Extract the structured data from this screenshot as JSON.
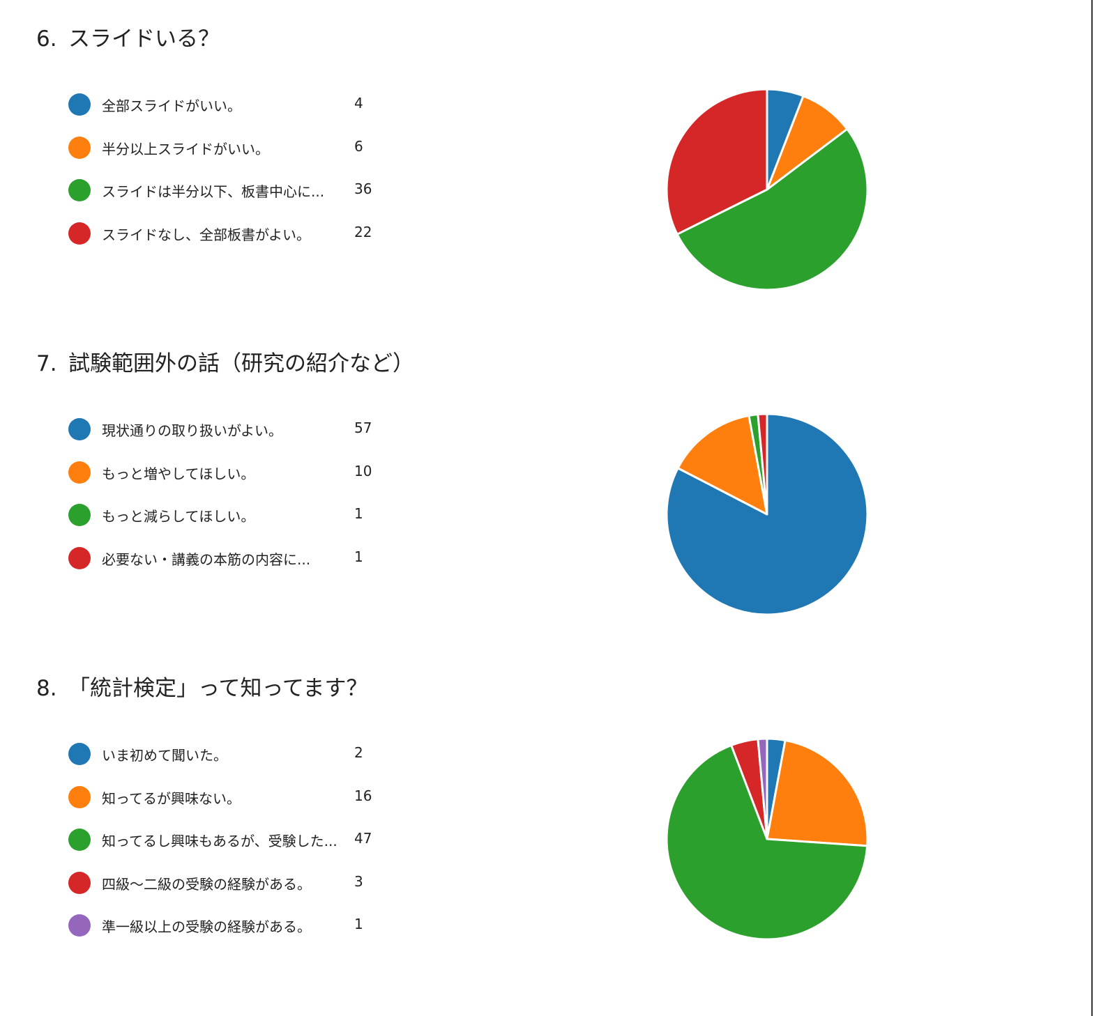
{
  "colors": [
    "#1f77b4",
    "#ff7f0e",
    "#2ca02c",
    "#d62728",
    "#9467bd"
  ],
  "chart_data": [
    {
      "type": "pie",
      "number": "6.",
      "title": "スライドいる？",
      "categories": [
        "全部スライドがいい。",
        "半分以上スライドがいい。",
        "スライドは半分以下、板書中心に...",
        "スライドなし、全部板書がよい。"
      ],
      "values": [
        4,
        6,
        36,
        22
      ],
      "legend": "left"
    },
    {
      "type": "pie",
      "number": "7.",
      "title": "試験範囲外の話（研究の紹介など）",
      "categories": [
        "現状通りの取り扱いがよい。",
        "もっと増やしてほしい。",
        "もっと減らしてほしい。",
        "必要ない・講義の本筋の内容に..."
      ],
      "values": [
        57,
        10,
        1,
        1
      ],
      "legend": "left"
    },
    {
      "type": "pie",
      "number": "8.",
      "title": "「統計検定」って知ってます？",
      "categories": [
        "いま初めて聞いた。",
        "知ってるが興味ない。",
        "知ってるし興味もあるが、受験した...",
        "四級～二級の受験の経験がある。",
        "準一級以上の受験の経験がある。"
      ],
      "values": [
        2,
        16,
        47,
        3,
        1
      ],
      "legend": "left"
    }
  ]
}
